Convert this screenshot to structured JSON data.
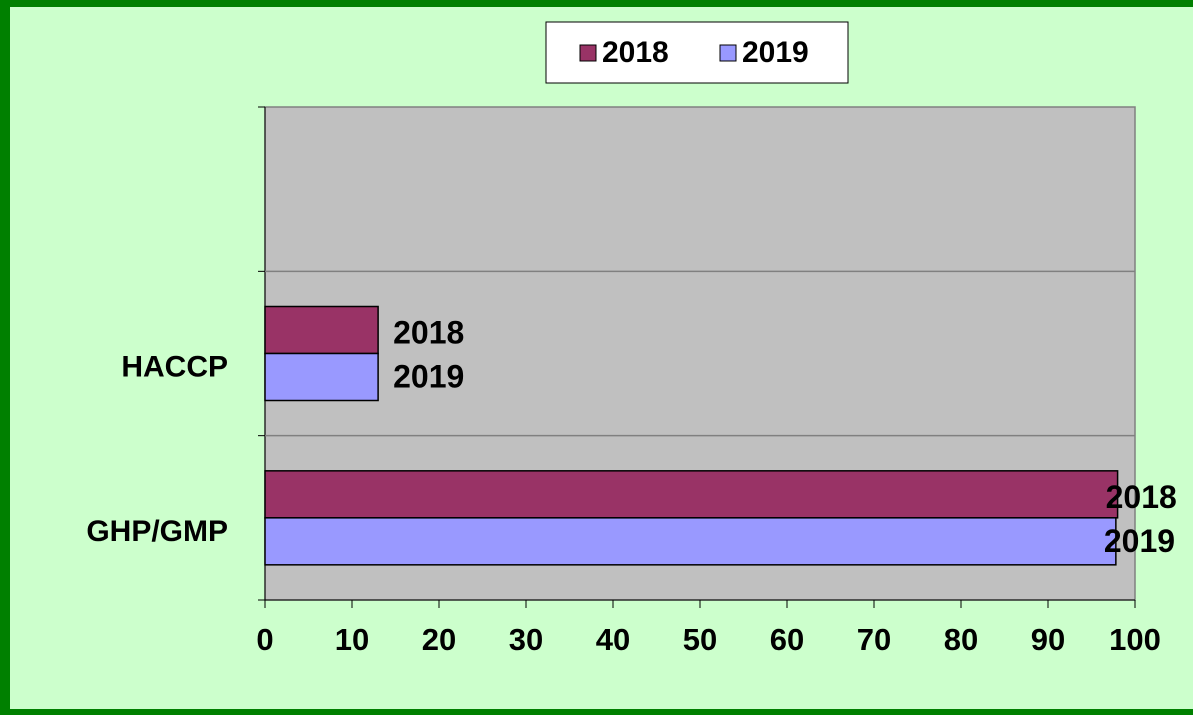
{
  "chart_data": {
    "type": "barh",
    "categories": [
      null,
      "HACCP",
      "GHP/GMP"
    ],
    "series": [
      {
        "name": "2018",
        "color": "#993366",
        "values": [
          null,
          13,
          98
        ]
      },
      {
        "name": "2019",
        "color": "#9999ff",
        "values": [
          null,
          13,
          97.8
        ]
      }
    ],
    "xlim": [
      0,
      100
    ],
    "xticks": [
      0,
      10,
      20,
      30,
      40,
      50,
      60,
      70,
      80,
      90,
      100
    ],
    "legend": "top",
    "grid": false
  }
}
